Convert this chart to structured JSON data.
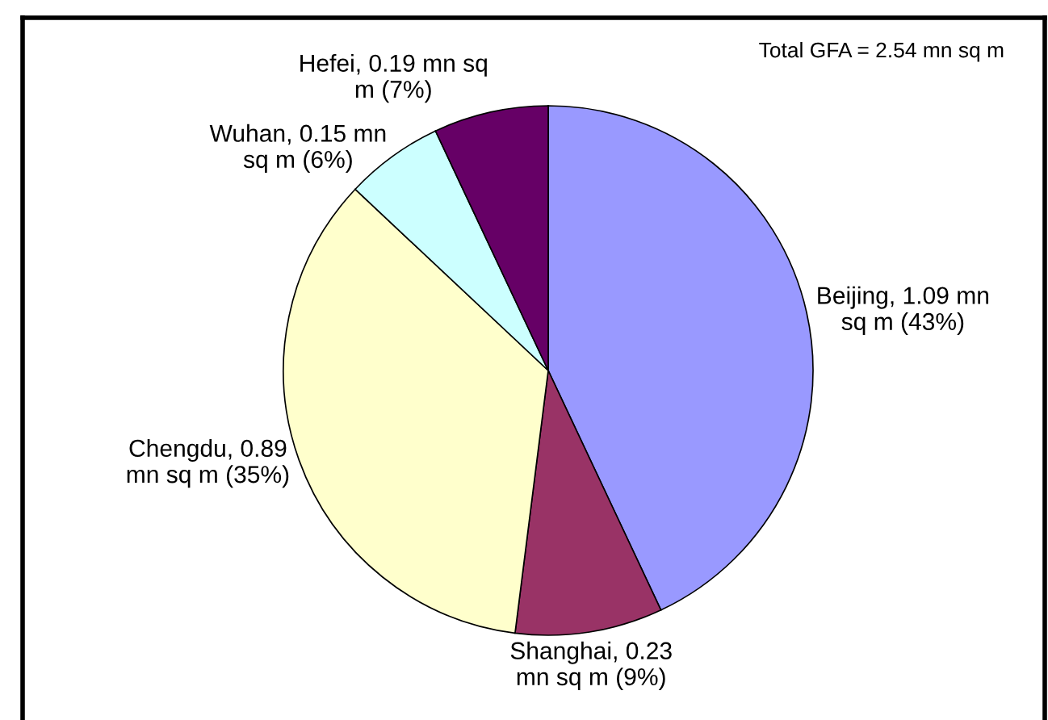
{
  "chart_data": {
    "type": "pie",
    "categories": [
      "Beijing",
      "Shanghai",
      "Chengdu",
      "Wuhan",
      "Hefei"
    ],
    "values": [
      43,
      9,
      35,
      6,
      7
    ],
    "colors": [
      "#9999ff",
      "#993366",
      "#ffffcc",
      "#ccffff",
      "#660066"
    ],
    "value_labels": [
      "1.09 mn sq m (43%)",
      "0.23 mn sq m (9%)",
      "0.89 mn sq m (35%)",
      "0.15 mn sq m (6%)",
      "0.19 mn sq m (7%)"
    ],
    "annotations": [
      "Total GFA = 2.54 mn sq m"
    ]
  }
}
